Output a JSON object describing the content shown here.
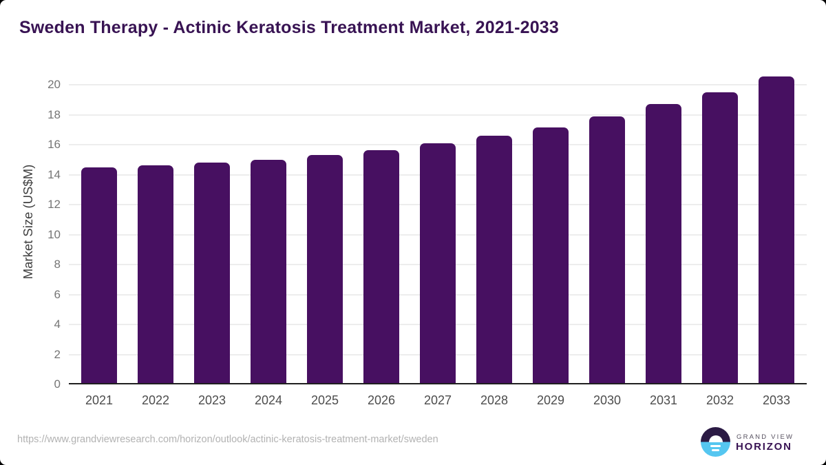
{
  "title": "Sweden Therapy - Actinic Keratosis Treatment Market, 2021-2033",
  "chart_data": {
    "type": "bar",
    "title": "Sweden Therapy - Actinic Keratosis Treatment Market, 2021-2033",
    "categories": [
      "2021",
      "2022",
      "2023",
      "2024",
      "2025",
      "2026",
      "2027",
      "2028",
      "2029",
      "2030",
      "2031",
      "2032",
      "2033"
    ],
    "values": [
      14.5,
      14.6,
      14.8,
      15.0,
      15.3,
      15.65,
      16.1,
      16.6,
      17.15,
      17.9,
      18.7,
      19.5,
      20.55
    ],
    "xlabel": "",
    "ylabel": "Market Size (US$M)",
    "ylim": [
      0,
      20
    ],
    "yticks": [
      0,
      2,
      4,
      6,
      8,
      10,
      12,
      14,
      16,
      18,
      20
    ],
    "grid": "horizontal",
    "legend": "none",
    "bar_color": "#471061"
  },
  "footer": {
    "source_url": "https://www.grandviewresearch.com/horizon/outlook/actinic-keratosis-treatment-market/sweden"
  },
  "logo": {
    "line1": "GRAND VIEW",
    "line2": "HORIZON"
  },
  "colors": {
    "title_text": "#381353",
    "bar": "#471061",
    "gridline": "#ededed",
    "axis_line": "#1f1f1f",
    "y_tick_text": "#757575",
    "x_tick_text": "#4c4c4c",
    "footer_text": "#b2b2b2",
    "logo_dark": "#2b1a44",
    "logo_blue": "#55c6f0"
  }
}
